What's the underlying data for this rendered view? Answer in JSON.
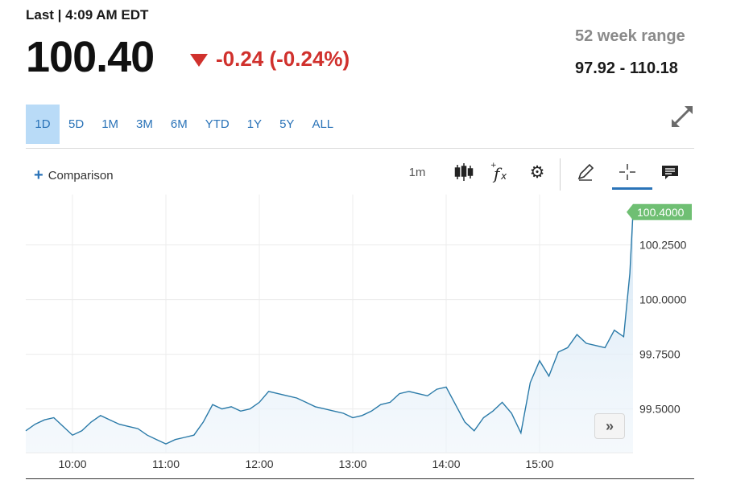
{
  "quote": {
    "last_label": "Last | 4:09 AM EDT",
    "price": "100.40",
    "change": "-0.24 (-0.24%)",
    "change_color": "#d0312d",
    "range_title": "52 week range",
    "range_value": "97.92 - 110.18"
  },
  "tabs": [
    "1D",
    "5D",
    "1M",
    "3M",
    "6M",
    "YTD",
    "1Y",
    "5Y",
    "ALL"
  ],
  "active_tab": "1D",
  "toolbar": {
    "comparison_label": "Comparison",
    "interval_label": "1m",
    "icons": [
      "candlestick-icon",
      "fx-icon",
      "gear-icon",
      "pencil-icon",
      "crosshair-icon",
      "comment-icon"
    ],
    "active_tool": "crosshair-icon"
  },
  "nav_button": "»",
  "chart_data": {
    "type": "area",
    "x_tick_labels": [
      "10:00",
      "11:00",
      "12:00",
      "13:00",
      "14:00",
      "15:00"
    ],
    "y_tick_labels": [
      "100.2500",
      "100.0000",
      "99.7500",
      "99.5000"
    ],
    "y_ticks": [
      100.25,
      100.0,
      99.75,
      99.5
    ],
    "ylim": [
      99.3,
      100.48
    ],
    "x_range": [
      "09:30",
      "16:00"
    ],
    "last_value_label": "100.4000",
    "last_value": 100.4,
    "line_color": "#2a7aa8",
    "marker_color": "#6fbf73",
    "grid": true,
    "x": [
      "09:30",
      "09:36",
      "09:42",
      "09:48",
      "09:54",
      "10:00",
      "10:06",
      "10:12",
      "10:18",
      "10:24",
      "10:30",
      "10:36",
      "10:42",
      "10:48",
      "10:54",
      "11:00",
      "11:06",
      "11:12",
      "11:18",
      "11:24",
      "11:30",
      "11:36",
      "11:42",
      "11:48",
      "11:54",
      "12:00",
      "12:06",
      "12:12",
      "12:18",
      "12:24",
      "12:30",
      "12:36",
      "12:42",
      "12:48",
      "12:54",
      "13:00",
      "13:06",
      "13:12",
      "13:18",
      "13:24",
      "13:30",
      "13:36",
      "13:42",
      "13:48",
      "13:54",
      "14:00",
      "14:06",
      "14:12",
      "14:18",
      "14:24",
      "14:30",
      "14:36",
      "14:42",
      "14:48",
      "14:54",
      "15:00",
      "15:06",
      "15:12",
      "15:18",
      "15:24",
      "15:30",
      "15:36",
      "15:42",
      "15:48",
      "15:54",
      "15:58",
      "16:00"
    ],
    "values": [
      99.4,
      99.43,
      99.45,
      99.46,
      99.42,
      99.38,
      99.4,
      99.44,
      99.47,
      99.45,
      99.43,
      99.42,
      99.41,
      99.38,
      99.36,
      99.34,
      99.36,
      99.37,
      99.38,
      99.44,
      99.52,
      99.5,
      99.51,
      99.49,
      99.5,
      99.53,
      99.58,
      99.57,
      99.56,
      99.55,
      99.53,
      99.51,
      99.5,
      99.49,
      99.48,
      99.46,
      99.47,
      99.49,
      99.52,
      99.53,
      99.57,
      99.58,
      99.57,
      99.56,
      99.59,
      99.6,
      99.52,
      99.44,
      99.4,
      99.46,
      99.49,
      99.53,
      99.48,
      99.39,
      99.62,
      99.72,
      99.65,
      99.76,
      99.78,
      99.84,
      99.8,
      99.79,
      99.78,
      99.86,
      99.83,
      100.12,
      100.4
    ]
  }
}
